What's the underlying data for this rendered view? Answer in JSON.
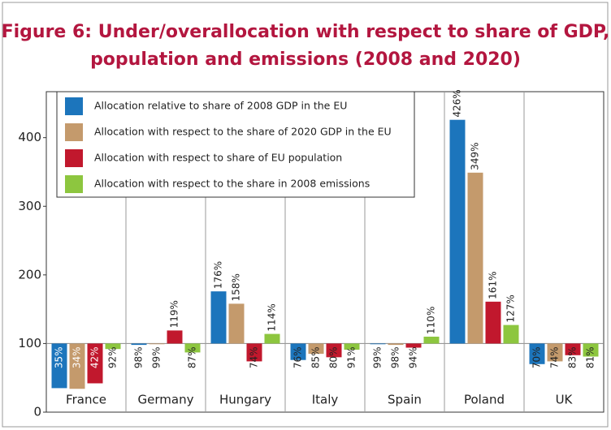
{
  "chart_data": {
    "type": "bar",
    "title": [
      "Figure 6: Under/overallocation with respect to share of GDP,",
      "population and emissions (2008 and 2020)"
    ],
    "categories": [
      "France",
      "Germany",
      "Hungary",
      "Italy",
      "Spain",
      "Poland",
      "UK"
    ],
    "bar_base": 100,
    "series": [
      {
        "name": "Allocation relative to share of 2008 GDP in the EU",
        "color": "#1c75bc",
        "values": [
          35,
          98,
          176,
          76,
          99,
          426,
          70
        ],
        "value_labels": [
          "35%",
          "98%",
          "176%",
          "76%",
          "99%",
          "426%",
          "70%"
        ]
      },
      {
        "name": "Allocation with respect to the share of 2020 GDP in the EU",
        "color": "#c49a6c",
        "values": [
          34,
          99,
          158,
          85,
          98,
          349,
          74
        ],
        "value_labels": [
          "34%",
          "99%",
          "158%",
          "85%",
          "98%",
          "349%",
          "74%"
        ]
      },
      {
        "name": "Allocation with respect to share of EU population",
        "color": "#c1182d",
        "values": [
          42,
          119,
          74,
          80,
          94,
          161,
          83
        ],
        "value_labels": [
          "42%",
          "119%",
          "74%",
          "80%",
          "94%",
          "161%",
          "83%"
        ]
      },
      {
        "name": "Allocation with respect to the share in 2008 emissions",
        "color": "#8dc63f",
        "values": [
          92,
          87,
          114,
          91,
          110,
          127,
          81
        ],
        "value_labels": [
          "92%",
          "87%",
          "114%",
          "91%",
          "110%",
          "127%",
          "81%"
        ]
      }
    ],
    "ylim": [
      0,
      467
    ],
    "yticks": [
      0,
      100,
      200,
      300,
      400
    ]
  }
}
